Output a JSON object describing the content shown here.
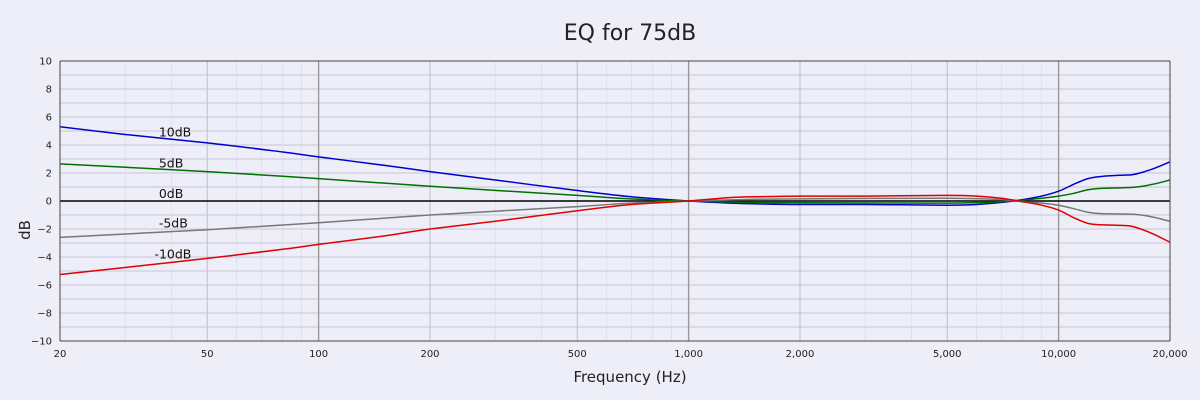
{
  "chart_data": {
    "type": "line",
    "title": "EQ for 75dB",
    "xlabel": "Frequency (Hz)",
    "ylabel": "dB",
    "x_scale": "log",
    "xlim": [
      20,
      20000
    ],
    "ylim": [
      -10,
      10
    ],
    "grid": true,
    "legend": "none",
    "x_ticks": [
      {
        "value": 20,
        "label": "20"
      },
      {
        "value": 50,
        "label": "50"
      },
      {
        "value": 100,
        "label": "100"
      },
      {
        "value": 200,
        "label": "200"
      },
      {
        "value": 500,
        "label": "500"
      },
      {
        "value": 1000,
        "label": "1,000"
      },
      {
        "value": 2000,
        "label": "2,000"
      },
      {
        "value": 5000,
        "label": "5,000"
      },
      {
        "value": 10000,
        "label": "10,000"
      },
      {
        "value": 20000,
        "label": "20,000"
      }
    ],
    "y_ticks": [
      {
        "value": 10,
        "label": "10"
      },
      {
        "value": 8,
        "label": "8"
      },
      {
        "value": 6,
        "label": "6"
      },
      {
        "value": 4,
        "label": "4"
      },
      {
        "value": 2,
        "label": "2"
      },
      {
        "value": 0,
        "label": "0"
      },
      {
        "value": -2,
        "label": "−2"
      },
      {
        "value": -4,
        "label": "−4"
      },
      {
        "value": -6,
        "label": "−6"
      },
      {
        "value": -8,
        "label": "−8"
      },
      {
        "value": -10,
        "label": "−10"
      }
    ],
    "series": [
      {
        "label": "10dB",
        "color": "#0000cc",
        "label_at": [
          37,
          4.6
        ],
        "points": [
          [
            20,
            5.3
          ],
          [
            30,
            4.75
          ],
          [
            50,
            4.15
          ],
          [
            80,
            3.5
          ],
          [
            100,
            3.15
          ],
          [
            150,
            2.55
          ],
          [
            200,
            2.1
          ],
          [
            300,
            1.5
          ],
          [
            500,
            0.75
          ],
          [
            700,
            0.3
          ],
          [
            1000,
            0.0
          ],
          [
            1300,
            -0.15
          ],
          [
            1500,
            -0.2
          ],
          [
            2000,
            -0.25
          ],
          [
            3000,
            -0.25
          ],
          [
            5000,
            -0.3
          ],
          [
            6000,
            -0.25
          ],
          [
            7000,
            -0.1
          ],
          [
            8000,
            0.1
          ],
          [
            9000,
            0.35
          ],
          [
            10000,
            0.7
          ],
          [
            11000,
            1.2
          ],
          [
            12000,
            1.6
          ],
          [
            13000,
            1.75
          ],
          [
            15000,
            1.85
          ],
          [
            16000,
            1.9
          ],
          [
            18000,
            2.3
          ],
          [
            20000,
            2.8
          ]
        ]
      },
      {
        "label": "5dB",
        "color": "#007000",
        "label_at": [
          37,
          2.4
        ],
        "points": [
          [
            20,
            2.65
          ],
          [
            50,
            2.1
          ],
          [
            100,
            1.6
          ],
          [
            200,
            1.05
          ],
          [
            500,
            0.4
          ],
          [
            700,
            0.15
          ],
          [
            1000,
            0.0
          ],
          [
            1500,
            -0.1
          ],
          [
            2000,
            -0.12
          ],
          [
            5000,
            -0.15
          ],
          [
            7000,
            -0.05
          ],
          [
            8000,
            0.05
          ],
          [
            9000,
            0.2
          ],
          [
            10000,
            0.35
          ],
          [
            11000,
            0.55
          ],
          [
            12000,
            0.8
          ],
          [
            13000,
            0.9
          ],
          [
            16000,
            0.98
          ],
          [
            18000,
            1.2
          ],
          [
            20000,
            1.5
          ]
        ]
      },
      {
        "label": "0dB",
        "color": "#000000",
        "label_at": [
          37,
          0.2
        ],
        "points": [
          [
            20,
            0
          ],
          [
            20000,
            0
          ]
        ]
      },
      {
        "label": "-5dB",
        "color": "#777777",
        "label_at": [
          37,
          -1.9
        ],
        "points": [
          [
            20,
            -2.6
          ],
          [
            50,
            -2.05
          ],
          [
            100,
            -1.55
          ],
          [
            200,
            -1.0
          ],
          [
            500,
            -0.4
          ],
          [
            700,
            -0.15
          ],
          [
            1000,
            0.0
          ],
          [
            1500,
            0.12
          ],
          [
            2000,
            0.15
          ],
          [
            5000,
            0.2
          ],
          [
            7000,
            0.1
          ],
          [
            8000,
            -0.05
          ],
          [
            9000,
            -0.15
          ],
          [
            10000,
            -0.3
          ],
          [
            11000,
            -0.55
          ],
          [
            12000,
            -0.8
          ],
          [
            13000,
            -0.9
          ],
          [
            16000,
            -0.95
          ],
          [
            18000,
            -1.15
          ],
          [
            20000,
            -1.45
          ]
        ]
      },
      {
        "label": "-10dB",
        "color": "#e00000",
        "label_at": [
          36,
          -4.1
        ],
        "points": [
          [
            20,
            -5.25
          ],
          [
            30,
            -4.75
          ],
          [
            50,
            -4.1
          ],
          [
            80,
            -3.45
          ],
          [
            100,
            -3.1
          ],
          [
            150,
            -2.5
          ],
          [
            200,
            -2.0
          ],
          [
            300,
            -1.45
          ],
          [
            500,
            -0.7
          ],
          [
            700,
            -0.25
          ],
          [
            1000,
            0.0
          ],
          [
            1300,
            0.25
          ],
          [
            1500,
            0.3
          ],
          [
            2000,
            0.35
          ],
          [
            3000,
            0.35
          ],
          [
            5000,
            0.4
          ],
          [
            6000,
            0.35
          ],
          [
            7000,
            0.2
          ],
          [
            8000,
            -0.05
          ],
          [
            9000,
            -0.3
          ],
          [
            10000,
            -0.65
          ],
          [
            11000,
            -1.2
          ],
          [
            12000,
            -1.6
          ],
          [
            13000,
            -1.7
          ],
          [
            15000,
            -1.75
          ],
          [
            16000,
            -1.85
          ],
          [
            18000,
            -2.35
          ],
          [
            20000,
            -2.95
          ]
        ]
      }
    ]
  }
}
